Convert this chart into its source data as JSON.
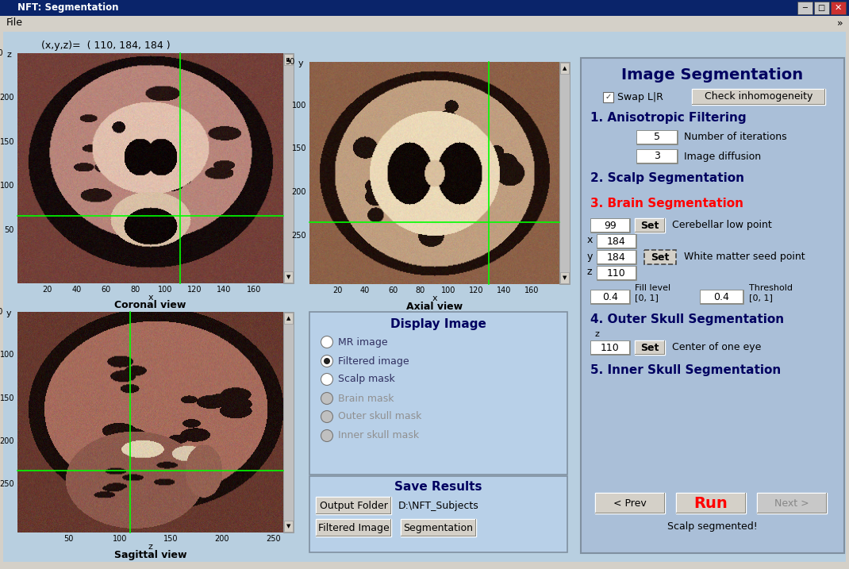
{
  "title_bar": "NFT: Segmentation",
  "menu": "File",
  "coord_text": "(x,y,z)=  ( 110, 184, 184 )",
  "coronal_label": "Coronal view",
  "axial_label": "Axial view",
  "sagittal_label": "Sagittal view",
  "bg_color": "#c8d8e8",
  "panel_bg": "#b8ccdc",
  "right_panel_bg": "#adc4dc",
  "window_bg": "#d4d0c8",
  "title_bar_bg": "#0a246a",
  "mri_colors": [
    0.12,
    0.45,
    0.72,
    0.85,
    0.95
  ],
  "display_image_title": "Display Image",
  "radio_options": [
    "MR image",
    "Filtered image",
    "Scalp mask",
    "Brain mask",
    "Outer skull mask",
    "Inner skull mask"
  ],
  "radio_selected": 1,
  "save_results_title": "Save Results",
  "output_folder_text": "D:\\NFT_Subjects",
  "right_title": "Image Segmentation",
  "swap_lr": "Swap L|R",
  "check_inhomogeneity": "Check inhomogeneity",
  "section1": "1. Anisotropic Filtering",
  "section2": "2. Scalp Segmentation",
  "section3": "3. Brain Segmentation",
  "section4": "4. Outer Skull Segmentation",
  "section5": "5. Inner Skull Segmentation",
  "iter_val": "5",
  "iter_label": "Number of iterations",
  "diff_val": "3",
  "diff_label": "Image diffusion",
  "cerebel_val": "99",
  "cerebel_label": "Cerebellar low point",
  "wm_x": "184",
  "wm_y": "184",
  "wm_z": "110",
  "wm_label": "White matter seed point",
  "fill_val": "0.4",
  "fill_label": "Fill level\n[0, 1]",
  "thresh_val": "0.4",
  "thresh_label": "Threshold\n[0, 1]",
  "outer_z": "110",
  "outer_label": "Center of one eye",
  "prev_text": "< Prev",
  "run_text": "Run",
  "next_text": "Next >",
  "status_text": "Scalp segmented!"
}
